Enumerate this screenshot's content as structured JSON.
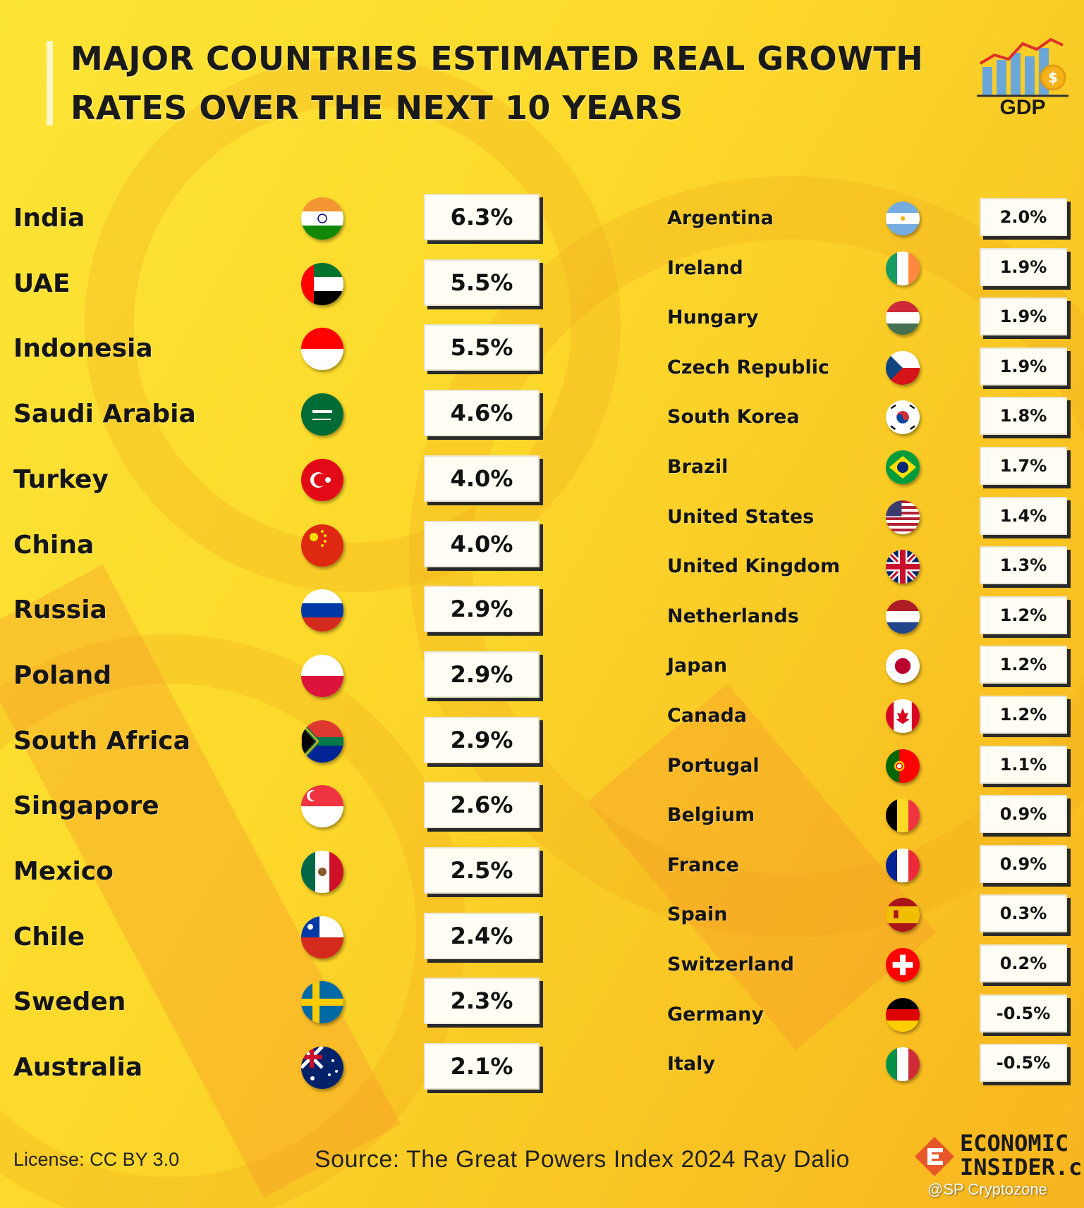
{
  "header": {
    "title_line1": "MAJOR COUNTRIES ESTIMATED REAL GROWTH",
    "title_line2": "RATES OVER THE NEXT 10 YEARS",
    "logo_label": "GDP"
  },
  "chart_data": {
    "type": "table",
    "title": "MAJOR COUNTRIES ESTIMATED REAL GROWTH RATES OVER THE NEXT 10 YEARS",
    "left_column": [
      {
        "country": "India",
        "value": "6.3%",
        "flag": "india-flag-icon"
      },
      {
        "country": "UAE",
        "value": "5.5%",
        "flag": "uae-flag-icon"
      },
      {
        "country": "Indonesia",
        "value": "5.5%",
        "flag": "indonesia-flag-icon"
      },
      {
        "country": "Saudi Arabia",
        "value": "4.6%",
        "flag": "saudi-arabia-flag-icon"
      },
      {
        "country": "Turkey",
        "value": "4.0%",
        "flag": "turkey-flag-icon"
      },
      {
        "country": "China",
        "value": "4.0%",
        "flag": "china-flag-icon"
      },
      {
        "country": "Russia",
        "value": "2.9%",
        "flag": "russia-flag-icon"
      },
      {
        "country": "Poland",
        "value": "2.9%",
        "flag": "poland-flag-icon"
      },
      {
        "country": "South Africa",
        "value": "2.9%",
        "flag": "south-africa-flag-icon"
      },
      {
        "country": "Singapore",
        "value": "2.6%",
        "flag": "singapore-flag-icon"
      },
      {
        "country": "Mexico",
        "value": "2.5%",
        "flag": "mexico-flag-icon"
      },
      {
        "country": "Chile",
        "value": "2.4%",
        "flag": "chile-flag-icon"
      },
      {
        "country": "Sweden",
        "value": "2.3%",
        "flag": "sweden-flag-icon"
      },
      {
        "country": "Australia",
        "value": "2.1%",
        "flag": "australia-flag-icon"
      }
    ],
    "right_column": [
      {
        "country": "Argentina",
        "value": "2.0%",
        "flag": "argentina-flag-icon"
      },
      {
        "country": "Ireland",
        "value": "1.9%",
        "flag": "ireland-flag-icon"
      },
      {
        "country": "Hungary",
        "value": "1.9%",
        "flag": "hungary-flag-icon"
      },
      {
        "country": "Czech Republic",
        "value": "1.9%",
        "flag": "czech-republic-flag-icon"
      },
      {
        "country": "South Korea",
        "value": "1.8%",
        "flag": "south-korea-flag-icon"
      },
      {
        "country": "Brazil",
        "value": "1.7%",
        "flag": "brazil-flag-icon"
      },
      {
        "country": "United States",
        "value": "1.4%",
        "flag": "united-states-flag-icon"
      },
      {
        "country": "United Kingdom",
        "value": "1.3%",
        "flag": "united-kingdom-flag-icon"
      },
      {
        "country": "Netherlands",
        "value": "1.2%",
        "flag": "netherlands-flag-icon"
      },
      {
        "country": "Japan",
        "value": "1.2%",
        "flag": "japan-flag-icon"
      },
      {
        "country": "Canada",
        "value": "1.2%",
        "flag": "canada-flag-icon"
      },
      {
        "country": "Portugal",
        "value": "1.1%",
        "flag": "portugal-flag-icon"
      },
      {
        "country": "Belgium",
        "value": "0.9%",
        "flag": "belgium-flag-icon"
      },
      {
        "country": "France",
        "value": "0.9%",
        "flag": "france-flag-icon"
      },
      {
        "country": "Spain",
        "value": "0.3%",
        "flag": "spain-flag-icon"
      },
      {
        "country": "Switzerland",
        "value": "0.2%",
        "flag": "switzerland-flag-icon"
      },
      {
        "country": "Germany",
        "value": "-0.5%",
        "flag": "germany-flag-icon"
      },
      {
        "country": "Italy",
        "value": "-0.5%",
        "flag": "italy-flag-icon"
      }
    ]
  },
  "footer": {
    "license": "License: CC BY 3.0",
    "source": "Source: The Great Powers Index 2024 Ray Dalio",
    "brand_line1": "ECONOMIC",
    "brand_line2": "INSIDER.c",
    "watermark": "@SP Cryptozone"
  },
  "colors": {
    "background_top": "#fde536",
    "background_bottom": "#f7b51f",
    "value_box": "#fffdf4",
    "box_shadow": "#2a2a2a",
    "text": "#151515"
  }
}
